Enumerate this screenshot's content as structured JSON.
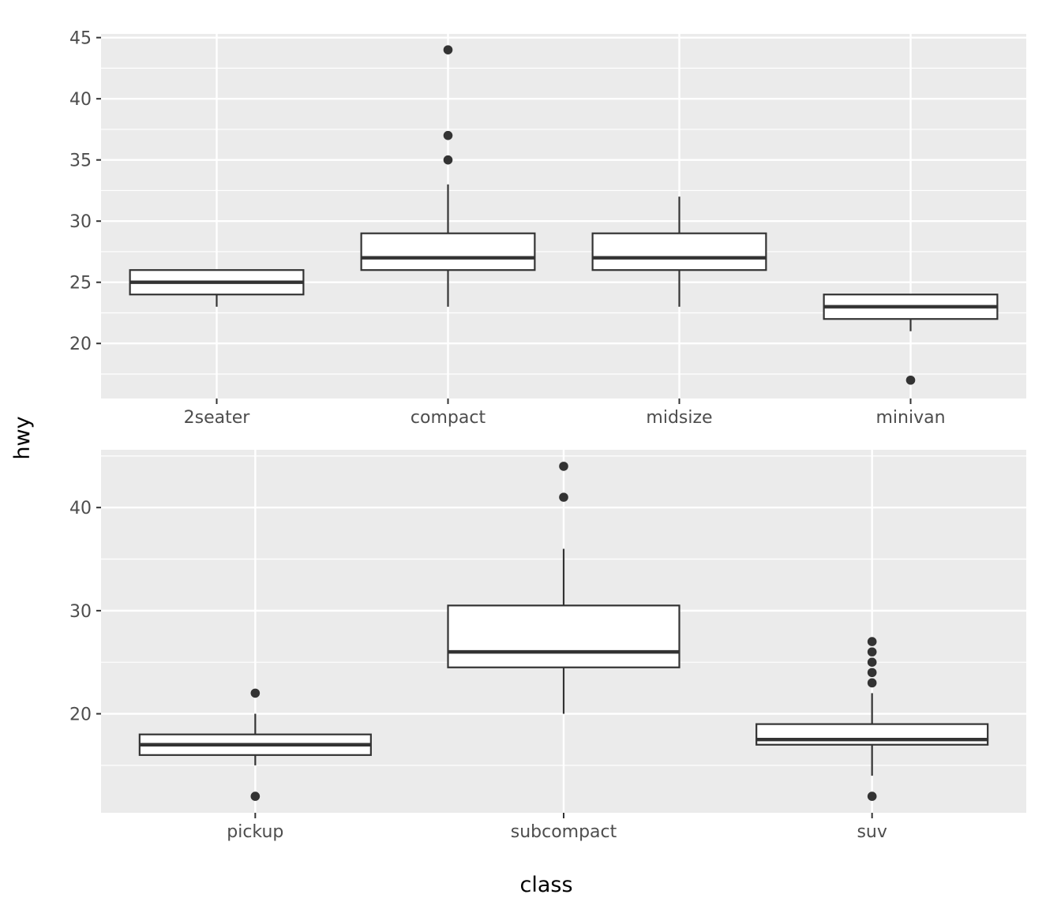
{
  "chart_data": {
    "type": "boxplot",
    "xlabel": "class",
    "ylabel": "hwy",
    "colors": {
      "panel_background": "#ebebeb",
      "grid": "#ffffff",
      "box_fill": "#ffffff",
      "box_stroke": "#333333",
      "outlier": "#333333",
      "tick_label": "#4d4d4d"
    },
    "panels": [
      {
        "ylim": [
          15.5,
          45.3
        ],
        "yticks": [
          20,
          25,
          30,
          35,
          40,
          45
        ],
        "ytick_labels": [
          "20",
          "25",
          "30",
          "35",
          "40",
          "45"
        ],
        "categories": [
          "2seater",
          "compact",
          "midsize",
          "minivan"
        ],
        "boxes": [
          {
            "category": "2seater",
            "whisker_low": 23,
            "q1": 24,
            "median": 25,
            "q3": 26,
            "whisker_high": 26,
            "outliers": []
          },
          {
            "category": "compact",
            "whisker_low": 23,
            "q1": 26,
            "median": 27,
            "q3": 29,
            "whisker_high": 33,
            "outliers": [
              35,
              37,
              44
            ]
          },
          {
            "category": "midsize",
            "whisker_low": 23,
            "q1": 26,
            "median": 27,
            "q3": 29,
            "whisker_high": 32,
            "outliers": []
          },
          {
            "category": "minivan",
            "whisker_low": 21,
            "q1": 22,
            "median": 23,
            "q3": 24,
            "whisker_high": 24,
            "outliers": [
              17
            ]
          }
        ]
      },
      {
        "ylim": [
          10.4,
          45.6
        ],
        "yticks": [
          20,
          30,
          40
        ],
        "ytick_labels": [
          "20",
          "30",
          "40"
        ],
        "categories": [
          "pickup",
          "subcompact",
          "suv"
        ],
        "boxes": [
          {
            "category": "pickup",
            "whisker_low": 15,
            "q1": 16,
            "median": 17,
            "q3": 18,
            "whisker_high": 20,
            "outliers": [
              12,
              22
            ]
          },
          {
            "category": "subcompact",
            "whisker_low": 20,
            "q1": 24.5,
            "median": 26,
            "q3": 30.5,
            "whisker_high": 36,
            "outliers": [
              41,
              44
            ]
          },
          {
            "category": "suv",
            "whisker_low": 14,
            "q1": 17,
            "median": 17.5,
            "q3": 19,
            "whisker_high": 22,
            "outliers": [
              12,
              23,
              24,
              25,
              26,
              27
            ]
          }
        ]
      }
    ]
  }
}
